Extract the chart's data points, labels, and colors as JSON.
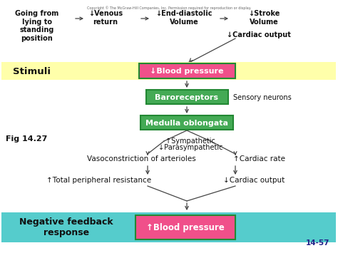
{
  "bg_color": "#ffffff",
  "copyright_text": "Copyright © The McGraw-Hill Companies, Inc. Permission required for reproduction or display.",
  "fig_label": "Fig 14.27",
  "slide_num": "14-57",
  "col1": "Going from\nlying to\nstanding\nposition",
  "col2": "↓Venous\nreturn",
  "col3": "↓End-diastolic\nVolume",
  "col4": "↓Stroke\nVolume",
  "col5": "↓Cardiac output",
  "stimuli_bg": "#ffffaa",
  "stimuli_text": "Stimuli",
  "bp1_bg": "#f0508a",
  "bp1_text": "↓Blood pressure",
  "baro_bg": "#44aa55",
  "baro_text": "Baroreceptors",
  "sensory_text": "Sensory neurons",
  "medulla_bg": "#44aa55",
  "medulla_text": "Medulla oblongata",
  "symp_text": "↑Sympathetic",
  "parasym_text": "↓Parasympathetic",
  "vaso_text": "Vasoconstriction of arterioles",
  "cardiac_rate_text": "↑Cardiac rate",
  "tpr_text": "↑Total peripheral resistance",
  "co_text": "↓Cardiac output",
  "nfb_bg": "#55cccc",
  "nfb_text": "Negative feedback\nresponse",
  "bp2_bg": "#f0508a",
  "bp2_text": "↑Blood pressure",
  "arrow_color": "#444444",
  "border_color": "#228833",
  "dark": "#111111"
}
